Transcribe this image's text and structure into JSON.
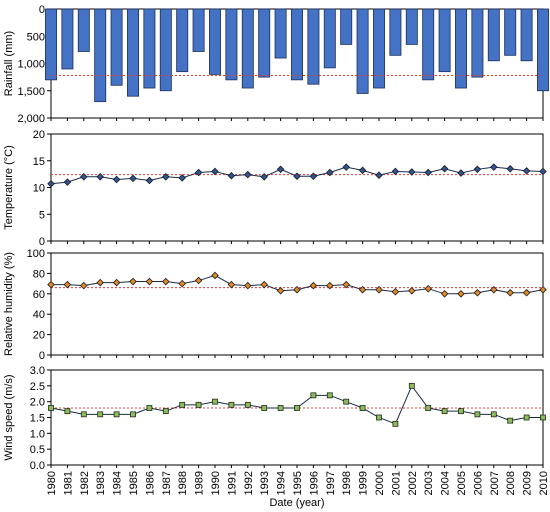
{
  "chart_data": {
    "type": "multi-panel",
    "x": [
      1980,
      1981,
      1982,
      1983,
      1984,
      1985,
      1986,
      1987,
      1988,
      1989,
      1990,
      1991,
      1992,
      1993,
      1994,
      1995,
      1996,
      1997,
      1998,
      1999,
      2000,
      2001,
      2002,
      2003,
      2004,
      2005,
      2006,
      2007,
      2008,
      2009,
      2010
    ],
    "xlabel": "Date (year)",
    "panels": [
      {
        "type": "bar",
        "ylabel": "Rainfall (mm)",
        "ylim": [
          0,
          2000
        ],
        "yaxis_inverted": true,
        "yticks": [
          "0",
          "500",
          "1,000",
          "1,500",
          "2,000"
        ],
        "ytick_values": [
          0,
          500,
          1000,
          1500,
          2000
        ],
        "values": [
          1300,
          1100,
          780,
          1700,
          1400,
          1600,
          1450,
          1500,
          1150,
          780,
          1200,
          1300,
          1450,
          1250,
          900,
          1300,
          1380,
          1080,
          650,
          1550,
          1450,
          850,
          650,
          1300,
          1150,
          1450,
          1250,
          950,
          850,
          950,
          1500
        ],
        "mean_line": 1220,
        "bar_color": "#4472c4",
        "mean_color": "#e03c31"
      },
      {
        "type": "line",
        "ylabel": "Temperature (°C)",
        "ylim": [
          0,
          20
        ],
        "yticks": [
          "0",
          "5",
          "10",
          "15",
          "20"
        ],
        "ytick_values": [
          0,
          5,
          10,
          15,
          20
        ],
        "values": [
          10.7,
          11.0,
          12.0,
          12.0,
          11.5,
          11.7,
          11.3,
          12.0,
          11.8,
          12.8,
          13.0,
          12.2,
          12.4,
          12.0,
          13.4,
          12.1,
          12.1,
          12.8,
          13.8,
          13.2,
          12.3,
          13.0,
          12.9,
          12.8,
          13.5,
          12.7,
          13.4,
          13.8,
          13.5,
          13.1,
          13.0
        ],
        "mean_line": 12.4,
        "marker": "diamond",
        "marker_color": "#2f5597",
        "mean_color": "#e03c31"
      },
      {
        "type": "line",
        "ylabel": "Relative humidity (%)",
        "ylim": [
          0,
          100
        ],
        "yticks": [
          "0",
          "20",
          "40",
          "60",
          "80",
          "100"
        ],
        "ytick_values": [
          0,
          20,
          40,
          60,
          80,
          100
        ],
        "values": [
          69,
          69,
          68,
          71,
          71,
          72,
          72,
          72,
          70,
          73,
          78,
          69,
          68,
          69,
          63,
          64,
          68,
          68,
          69,
          64,
          64,
          62,
          63,
          65,
          60,
          60,
          61,
          64,
          61,
          61,
          64
        ],
        "mean_line": 66,
        "marker": "diamond",
        "marker_color": "#e08a2c",
        "mean_color": "#e03c31"
      },
      {
        "type": "line",
        "ylabel": "Wind speed (m/s)",
        "ylim": [
          0,
          3.0
        ],
        "yticks": [
          "0.0",
          "0.5",
          "1.0",
          "1.5",
          "2.0",
          "2.5",
          "3.0"
        ],
        "ytick_values": [
          0,
          0.5,
          1.0,
          1.5,
          2.0,
          2.5,
          3.0
        ],
        "values": [
          1.8,
          1.7,
          1.6,
          1.6,
          1.6,
          1.6,
          1.8,
          1.7,
          1.9,
          1.9,
          2.0,
          1.9,
          1.9,
          1.8,
          1.8,
          1.8,
          2.2,
          2.2,
          2.0,
          1.8,
          1.5,
          1.3,
          2.5,
          1.8,
          1.7,
          1.7,
          1.6,
          1.6,
          1.4,
          1.5,
          1.5
        ],
        "mean_line": 1.8,
        "marker": "square",
        "marker_color": "#8fbc5a",
        "mean_color": "#e03c31"
      }
    ]
  }
}
